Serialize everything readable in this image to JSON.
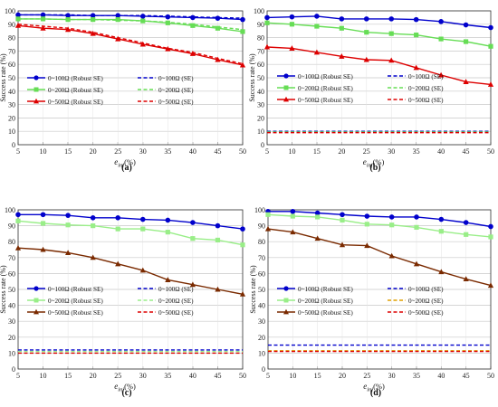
{
  "chart_data": [
    {
      "type": "line",
      "panel_label": "(a)",
      "xlabel_main": "e",
      "xlabel_sub": "inj",
      "xlabel_unit": "(%)",
      "ylabel": "Success rate (%)",
      "xlim": [
        5,
        50
      ],
      "ylim": [
        0,
        100
      ],
      "x_ticks": [
        5,
        10,
        15,
        20,
        25,
        30,
        35,
        40,
        45,
        50
      ],
      "y_ticks": [
        0,
        10,
        20,
        30,
        40,
        50,
        60,
        70,
        80,
        90,
        100
      ],
      "legend_position": "lower-left",
      "x": [
        5,
        10,
        15,
        20,
        25,
        30,
        35,
        40,
        45,
        50
      ],
      "series": [
        {
          "name": "0~100Ω (Robust SE)",
          "color": "#0000cc",
          "marker": "circle",
          "dashed": false,
          "values": [
            97,
            97,
            96.5,
            96.5,
            96.5,
            96,
            95.5,
            95,
            94.5,
            93.5
          ]
        },
        {
          "name": "0~100Ω (SE)",
          "color": "#0000cc",
          "marker": "none",
          "dashed": true,
          "values": [
            97,
            97,
            97,
            96.5,
            96.5,
            96.5,
            96,
            95.5,
            95,
            94.5
          ]
        },
        {
          "name": "0~200Ω (Robust SE)",
          "color": "#66dd55",
          "marker": "square",
          "dashed": false,
          "values": [
            94,
            94,
            93.5,
            93.5,
            93.5,
            92.5,
            91,
            89,
            87,
            84.5
          ]
        },
        {
          "name": "0~200Ω (SE)",
          "color": "#66dd55",
          "marker": "none",
          "dashed": true,
          "values": [
            94,
            94,
            93.5,
            93.5,
            93,
            92.5,
            91.5,
            90,
            88,
            86
          ]
        },
        {
          "name": "0~500Ω (Robust SE)",
          "color": "#dd0000",
          "marker": "triangle",
          "dashed": false,
          "values": [
            89,
            87,
            86,
            83,
            79,
            75,
            71.5,
            68,
            63.5,
            59.5
          ]
        },
        {
          "name": "0~500Ω (SE)",
          "color": "#dd0000",
          "marker": "none",
          "dashed": true,
          "values": [
            90,
            88.5,
            87,
            84,
            80,
            76,
            72,
            69,
            64.5,
            60.5
          ]
        }
      ]
    },
    {
      "type": "line",
      "panel_label": "(b)",
      "xlabel_main": "e",
      "xlabel_sub": "inj",
      "xlabel_unit": "(%)",
      "ylabel": "Success rate (%)",
      "xlim": [
        5,
        50
      ],
      "ylim": [
        0,
        100
      ],
      "x_ticks": [
        5,
        10,
        15,
        20,
        25,
        30,
        35,
        40,
        45,
        50
      ],
      "y_ticks": [
        0,
        10,
        20,
        30,
        40,
        50,
        60,
        70,
        80,
        90,
        100
      ],
      "legend_position": "lower-left",
      "x": [
        5,
        10,
        15,
        20,
        25,
        30,
        35,
        40,
        45,
        50
      ],
      "series": [
        {
          "name": "0~100Ω (Robust SE)",
          "color": "#0000cc",
          "marker": "circle",
          "dashed": false,
          "values": [
            95,
            95.5,
            96,
            94,
            94,
            94,
            93.5,
            92,
            89.5,
            87.5
          ]
        },
        {
          "name": "0~100Ω (SE)",
          "color": "#0000cc",
          "marker": "none",
          "dashed": true,
          "values": [
            10,
            10,
            10,
            10,
            10,
            10,
            10,
            10,
            10,
            10
          ]
        },
        {
          "name": "0~200Ω (Robust SE)",
          "color": "#66dd55",
          "marker": "square",
          "dashed": false,
          "values": [
            91,
            90,
            88.5,
            87,
            84,
            83,
            82,
            79,
            77,
            73.5
          ]
        },
        {
          "name": "0~200Ω (SE)",
          "color": "#66dd55",
          "marker": "none",
          "dashed": true,
          "values": [
            9.5,
            9.5,
            9.5,
            9.5,
            9.5,
            9.5,
            9.5,
            9.5,
            9.5,
            9.5
          ]
        },
        {
          "name": "0~500Ω (Robust SE)",
          "color": "#dd0000",
          "marker": "triangle",
          "dashed": false,
          "values": [
            73,
            72,
            69,
            66,
            63.5,
            63,
            57.5,
            52,
            47,
            45
          ]
        },
        {
          "name": "0~500Ω (SE)",
          "color": "#dd0000",
          "marker": "none",
          "dashed": true,
          "values": [
            9,
            9,
            9,
            9,
            9,
            9,
            9,
            9,
            9,
            9
          ]
        }
      ]
    },
    {
      "type": "line",
      "panel_label": "(c)",
      "xlabel_main": "e",
      "xlabel_sub": "inj",
      "xlabel_unit": "(%)",
      "ylabel": "Success rate (%)",
      "xlim": [
        5,
        50
      ],
      "ylim": [
        0,
        100
      ],
      "x_ticks": [
        5,
        10,
        15,
        20,
        25,
        30,
        35,
        40,
        45,
        50
      ],
      "y_ticks": [
        0,
        10,
        20,
        30,
        40,
        50,
        60,
        70,
        80,
        90,
        100
      ],
      "legend_position": "lower-left",
      "x": [
        5,
        10,
        15,
        20,
        25,
        30,
        35,
        40,
        45,
        50
      ],
      "series": [
        {
          "name": "0~100Ω (Robust SE)",
          "color": "#0000cc",
          "marker": "circle",
          "dashed": false,
          "values": [
            97,
            97,
            96.5,
            95,
            95,
            94,
            93.5,
            92,
            90,
            88
          ]
        },
        {
          "name": "0~100Ω (SE)",
          "color": "#0000cc",
          "marker": "none",
          "dashed": true,
          "values": [
            12,
            12,
            12,
            12,
            12,
            12,
            12,
            12,
            12,
            12
          ]
        },
        {
          "name": "0~200Ω (Robust SE)",
          "color": "#99ee88",
          "marker": "square",
          "dashed": false,
          "values": [
            93,
            91.5,
            90.5,
            90,
            88,
            88,
            86,
            82,
            81,
            78
          ]
        },
        {
          "name": "0~200Ω (SE)",
          "color": "#99ee88",
          "marker": "none",
          "dashed": true,
          "values": [
            11,
            11,
            11,
            11,
            11,
            11,
            11,
            11,
            11,
            11
          ]
        },
        {
          "name": "0~500Ω (Robust SE)",
          "color": "#7a2a00",
          "marker": "triangle",
          "dashed": false,
          "values": [
            76,
            75,
            73,
            70,
            66,
            62,
            56,
            53,
            50,
            47
          ]
        },
        {
          "name": "0~500Ω (SE)",
          "color": "#dd0000",
          "marker": "none",
          "dashed": true,
          "values": [
            10,
            10,
            10,
            10,
            10,
            10,
            10,
            10,
            10,
            10
          ]
        }
      ]
    },
    {
      "type": "line",
      "panel_label": "(d)",
      "xlabel_main": "e",
      "xlabel_sub": "inj",
      "xlabel_unit": "(%)",
      "ylabel": "Success rate (%)",
      "xlim": [
        5,
        50
      ],
      "ylim": [
        0,
        100
      ],
      "x_ticks": [
        5,
        10,
        15,
        20,
        25,
        30,
        35,
        40,
        45,
        50
      ],
      "y_ticks": [
        0,
        10,
        20,
        30,
        40,
        50,
        60,
        70,
        80,
        90,
        100
      ],
      "legend_position": "lower-left",
      "x": [
        5,
        10,
        15,
        20,
        25,
        30,
        35,
        40,
        45,
        50
      ],
      "series": [
        {
          "name": "0~100Ω (Robust SE)",
          "color": "#0000cc",
          "marker": "circle",
          "dashed": false,
          "values": [
            99,
            99,
            98,
            97,
            96,
            95.5,
            95.5,
            94,
            92,
            89.5
          ]
        },
        {
          "name": "0~100Ω (SE)",
          "color": "#0000cc",
          "marker": "none",
          "dashed": true,
          "values": [
            15,
            15,
            15,
            15,
            15,
            15,
            15,
            15,
            15,
            15
          ]
        },
        {
          "name": "0~200Ω (Robust SE)",
          "color": "#99ee88",
          "marker": "square",
          "dashed": false,
          "values": [
            97,
            96,
            95.5,
            93.5,
            91,
            90.5,
            89,
            86.5,
            84.5,
            83
          ]
        },
        {
          "name": "0~200Ω (SE)",
          "color": "#e0a000",
          "marker": "none",
          "dashed": true,
          "values": [
            11.5,
            11.5,
            11.5,
            11.5,
            11.5,
            11.5,
            11.5,
            11.5,
            11.5,
            11.5
          ]
        },
        {
          "name": "0~500Ω (Robust SE)",
          "color": "#7a2a00",
          "marker": "triangle",
          "dashed": false,
          "values": [
            88,
            86,
            82,
            78,
            77.5,
            71,
            66,
            61,
            56.5,
            52.5
          ]
        },
        {
          "name": "0~500Ω (SE)",
          "color": "#dd0000",
          "marker": "none",
          "dashed": true,
          "values": [
            11,
            11,
            11,
            11,
            11,
            11,
            11,
            11,
            11,
            11
          ]
        }
      ]
    }
  ]
}
